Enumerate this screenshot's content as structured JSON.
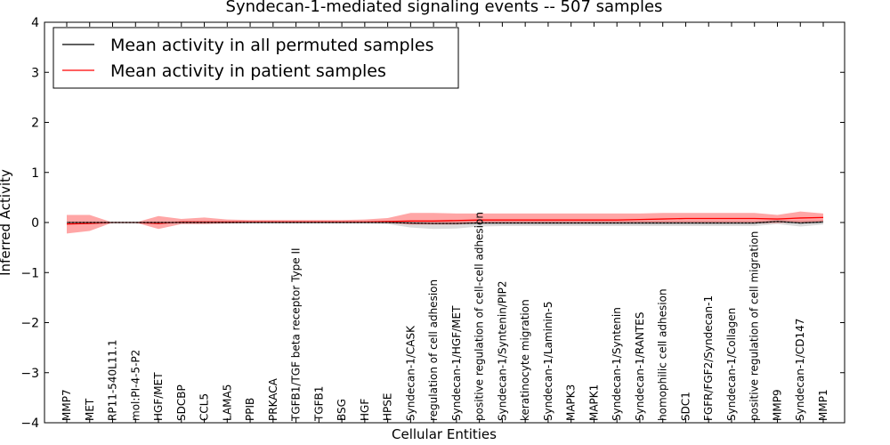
{
  "chart_data": {
    "type": "line",
    "title": "Syndecan-1-mediated signaling events -- 507 samples",
    "xlabel": "Cellular Entities",
    "ylabel": "Inferred Activity",
    "ylim": [
      -4,
      4
    ],
    "yticks": [
      "4",
      "3",
      "2",
      "1",
      "0",
      "−1",
      "−2",
      "−3",
      "−4"
    ],
    "ytick_values": [
      4,
      3,
      2,
      1,
      0,
      -1,
      -2,
      -3,
      -4
    ],
    "legend_position": "top-left",
    "categories": [
      "MMP7",
      "MET",
      "RP11-540L11.1",
      "mol:PI-4-5-P2",
      "HGF/MET",
      "SDCBP",
      "CCL5",
      "LAMA5",
      "PPIB",
      "PRKACA",
      "TGFB1/TGF beta receptor Type II",
      "TGFB1",
      "BSG",
      "HGF",
      "HPSE",
      "Syndecan-1/CASK",
      "regulation of cell adhesion",
      "Syndecan-1/HGF/MET",
      "positive regulation of cell-cell adhesion",
      "Syndecan-1/Syntenin/PIP2",
      "keratinocyte migration",
      "Syndecan-1/Laminin-5",
      "MAPK3",
      "MAPK1",
      "Syndecan-1/Syntenin",
      "Syndecan-1/RANTES",
      "homophilic cell adhesion",
      "SDC1",
      "FGFR/FGF2/Syndecan-1",
      "Syndecan-1/Collagen",
      "positive regulation of cell migration",
      "MMP9",
      "Syndecan-1/CD147",
      "MMP1"
    ],
    "series": [
      {
        "name": "Mean activity in all permuted samples",
        "color": "#000000",
        "values": [
          0.0,
          0.0,
          0.0,
          0.0,
          0.0,
          0.0,
          0.0,
          0.0,
          0.0,
          0.0,
          0.0,
          0.0,
          0.0,
          0.0,
          0.0,
          -0.01,
          -0.02,
          -0.02,
          -0.01,
          -0.01,
          -0.01,
          -0.01,
          -0.01,
          -0.01,
          -0.01,
          -0.01,
          -0.01,
          -0.01,
          -0.01,
          -0.01,
          -0.01,
          0.02,
          -0.01,
          0.01
        ],
        "band_upper": [
          0.02,
          0.02,
          0.02,
          0.02,
          0.02,
          0.02,
          0.02,
          0.02,
          0.02,
          0.02,
          0.02,
          0.02,
          0.02,
          0.02,
          0.03,
          0.03,
          0.03,
          0.03,
          0.03,
          0.03,
          0.03,
          0.03,
          0.03,
          0.03,
          0.03,
          0.03,
          0.03,
          0.03,
          0.03,
          0.03,
          0.03,
          0.05,
          0.04,
          0.05
        ],
        "band_lower": [
          -0.02,
          -0.02,
          -0.02,
          -0.02,
          -0.02,
          -0.02,
          -0.02,
          -0.02,
          -0.02,
          -0.02,
          -0.02,
          -0.02,
          -0.02,
          -0.02,
          -0.03,
          -0.1,
          -0.13,
          -0.12,
          -0.08,
          -0.07,
          -0.07,
          -0.07,
          -0.07,
          -0.07,
          -0.07,
          -0.07,
          -0.07,
          -0.07,
          -0.07,
          -0.07,
          -0.07,
          -0.03,
          -0.08,
          -0.04
        ]
      },
      {
        "name": "Mean activity in patient samples",
        "color": "#ff0000",
        "values": [
          -0.03,
          -0.02,
          0.0,
          0.0,
          -0.02,
          0.01,
          0.01,
          0.01,
          0.01,
          0.01,
          0.01,
          0.01,
          0.01,
          0.01,
          0.02,
          0.03,
          0.03,
          0.04,
          0.05,
          0.05,
          0.05,
          0.05,
          0.05,
          0.05,
          0.05,
          0.06,
          0.07,
          0.08,
          0.08,
          0.08,
          0.08,
          0.07,
          0.09,
          0.1
        ],
        "band_upper": [
          0.15,
          0.15,
          0.0,
          0.0,
          0.13,
          0.07,
          0.1,
          0.06,
          0.05,
          0.05,
          0.05,
          0.05,
          0.05,
          0.06,
          0.09,
          0.19,
          0.19,
          0.18,
          0.18,
          0.18,
          0.18,
          0.18,
          0.18,
          0.18,
          0.18,
          0.18,
          0.19,
          0.19,
          0.19,
          0.19,
          0.19,
          0.15,
          0.22,
          0.18
        ],
        "band_lower": [
          -0.22,
          -0.17,
          0.0,
          0.0,
          -0.13,
          -0.03,
          -0.03,
          -0.02,
          -0.01,
          -0.01,
          -0.01,
          -0.01,
          -0.01,
          -0.01,
          -0.01,
          -0.04,
          -0.04,
          -0.04,
          -0.02,
          -0.02,
          -0.02,
          -0.02,
          -0.02,
          -0.02,
          -0.02,
          -0.02,
          -0.02,
          -0.02,
          -0.02,
          -0.02,
          -0.02,
          -0.01,
          0.0,
          0.0
        ]
      }
    ]
  }
}
